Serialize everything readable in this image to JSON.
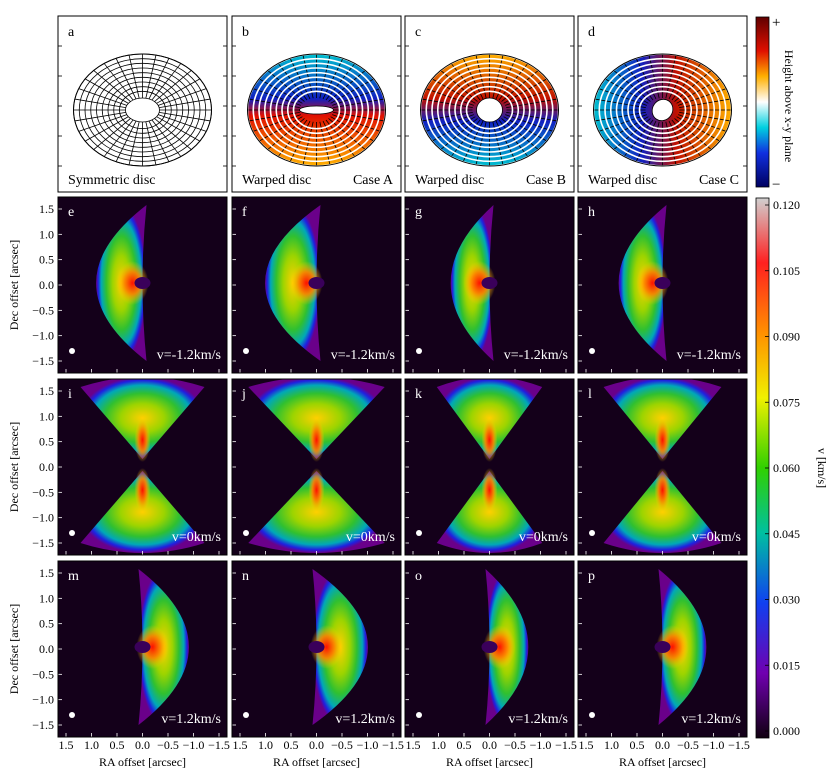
{
  "top_row": {
    "panels": [
      {
        "letter": "a",
        "label": "Symmetric disc",
        "case": ""
      },
      {
        "letter": "b",
        "label": "Warped disc",
        "case": "Case A"
      },
      {
        "letter": "c",
        "label": "Warped disc",
        "case": "Case B"
      },
      {
        "letter": "d",
        "label": "Warped disc",
        "case": "Case C"
      }
    ],
    "colorbar": {
      "label": "Height above x-y plane",
      "top": "+",
      "bottom": "−"
    }
  },
  "maps": {
    "rows": [
      {
        "velocity_label": "v=-1.2km/s",
        "letters": [
          "e",
          "f",
          "g",
          "h"
        ]
      },
      {
        "velocity_label": "v=0km/s",
        "letters": [
          "i",
          "j",
          "k",
          "l"
        ]
      },
      {
        "velocity_label": "v=1.2km/s",
        "letters": [
          "m",
          "n",
          "o",
          "p"
        ]
      }
    ],
    "ylabel": "Dec offset [arcsec]",
    "xlabel": "RA offset [arcsec]",
    "yticks": [
      "1.5",
      "1.0",
      "0.5",
      "0.0",
      "−0.5",
      "−1.0",
      "−1.5"
    ],
    "xticks": [
      "1.5",
      "1.0",
      "0.5",
      "0.0",
      "−0.5",
      "−1.0",
      "−1.5"
    ]
  },
  "colorbar": {
    "label": "v [km/s]",
    "ticks": [
      "0.120",
      "0.105",
      "0.090",
      "0.075",
      "0.060",
      "0.045",
      "0.030",
      "0.015",
      "0.000"
    ],
    "stops": [
      "#c8c8c8",
      "#ff0000",
      "#ffa500",
      "#ffff00",
      "#00c800",
      "#00c8c8",
      "#0000ff",
      "#8000c0",
      "#120012"
    ]
  }
}
